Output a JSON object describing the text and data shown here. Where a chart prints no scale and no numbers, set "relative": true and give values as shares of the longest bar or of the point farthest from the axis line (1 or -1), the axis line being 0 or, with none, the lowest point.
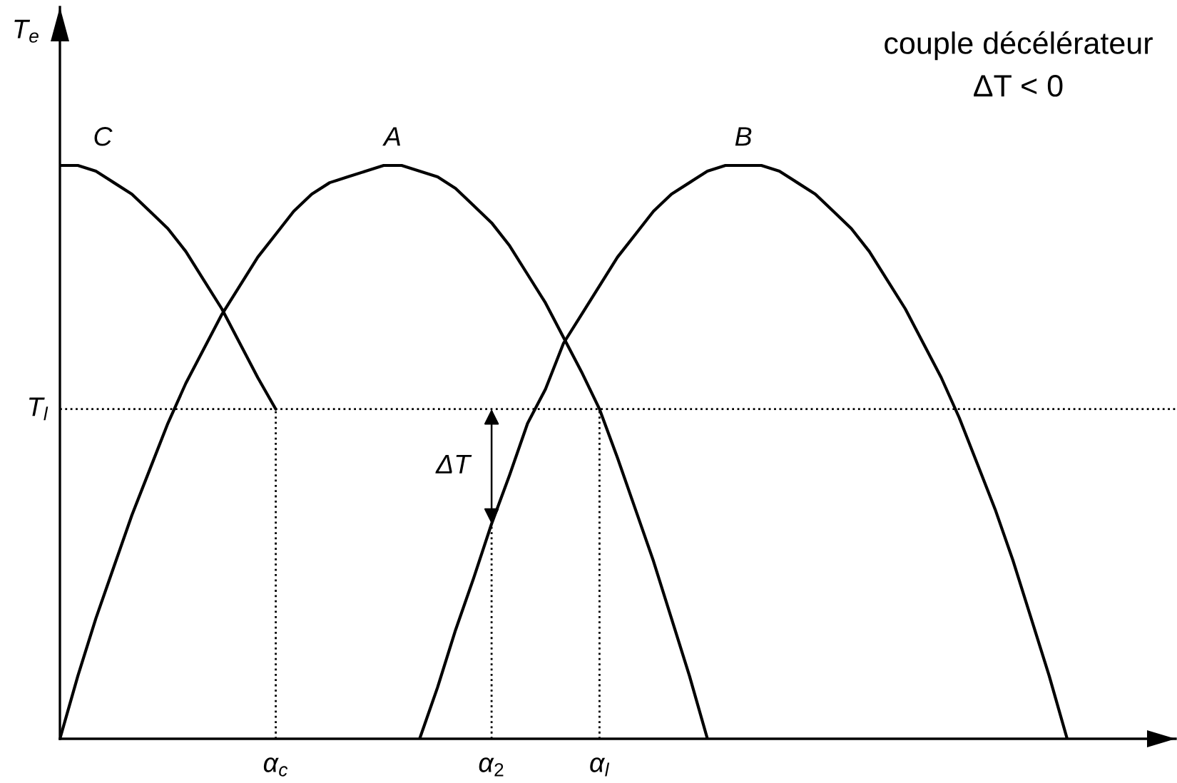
{
  "chart_data": {
    "type": "line",
    "relative": true,
    "ylabel": "T$_{e}$",
    "categories": [
      null,
      null,
      null,
      null,
      null,
      null,
      null,
      null,
      null,
      null,
      null,
      null,
      "α$_{c}$",
      null,
      null,
      null,
      null,
      null,
      null,
      null,
      null,
      null,
      null,
      null,
      "α$_{2}$",
      null,
      null,
      null,
      null,
      null,
      "α$_{l}$",
      null,
      null,
      null,
      null,
      null,
      null,
      null,
      null,
      null,
      null,
      null,
      null,
      null,
      null,
      null,
      null,
      null,
      null,
      null,
      null,
      null,
      null,
      null,
      null,
      null,
      null
    ],
    "series": [
      {
        "name": "C",
        "color": "#000000",
        "values": [
          1.0,
          1.0,
          0.99,
          0.97,
          0.95,
          0.92,
          0.89,
          0.85,
          0.8,
          0.75,
          0.69,
          0.63,
          0.575,
          null,
          null,
          null,
          null,
          null,
          null,
          null,
          null,
          null,
          null,
          null,
          null,
          null,
          null,
          null,
          null,
          null,
          null,
          null,
          null,
          null,
          null,
          null,
          null,
          null,
          null,
          null,
          null,
          null,
          null,
          null,
          null,
          null,
          null,
          null,
          null,
          null,
          null,
          null,
          null,
          null,
          null,
          null,
          null
        ]
      },
      {
        "name": "A",
        "color": "#000000",
        "values": [
          0,
          0.11,
          0.21,
          0.3,
          0.39,
          0.47,
          0.55,
          0.62,
          0.68,
          0.74,
          0.79,
          0.84,
          0.88,
          0.92,
          0.95,
          0.97,
          0.98,
          0.99,
          1.0,
          1.0,
          0.99,
          0.98,
          0.96,
          0.93,
          0.9,
          0.86,
          0.81,
          0.76,
          0.7,
          0.64,
          0.575,
          0.49,
          0.4,
          0.31,
          0.21,
          0.11,
          0,
          null,
          null,
          null,
          null,
          null,
          null,
          null,
          null,
          null,
          null,
          null,
          null,
          null,
          null,
          null,
          null,
          null,
          null,
          null,
          null
        ]
      },
      {
        "name": "B",
        "color": "#000000",
        "values": [
          null,
          null,
          null,
          null,
          null,
          null,
          null,
          null,
          null,
          null,
          null,
          null,
          null,
          null,
          null,
          null,
          null,
          null,
          null,
          null,
          0,
          0.09,
          0.19,
          0.28,
          0.375,
          0.46,
          0.55,
          0.61,
          0.69,
          0.74,
          0.79,
          0.84,
          0.88,
          0.92,
          0.95,
          0.97,
          0.99,
          1.0,
          1.0,
          1.0,
          0.99,
          0.97,
          0.95,
          0.92,
          0.89,
          0.85,
          0.8,
          0.75,
          0.69,
          0.63,
          0.56,
          0.48,
          0.4,
          0.31,
          0.21,
          0.11,
          0
        ]
      }
    ],
    "ref_lines": [
      {
        "axis": "y",
        "value": 0.575,
        "label": "T$_{l}$",
        "line_style": "dotted",
        "color": "#000000"
      },
      {
        "axis": "x",
        "value": "α$_{c}$",
        "line_style": "dotted",
        "color": "#000000"
      },
      {
        "axis": "x",
        "value": "α$_{2}$",
        "line_style": "dotted",
        "color": "#000000"
      },
      {
        "axis": "x",
        "value": "α$_{l}$",
        "line_style": "dotted",
        "color": "#000000"
      }
    ],
    "annotations": [
      "couple décélérateur",
      "ΔT < 0",
      {
        "text": "ΔT",
        "x": "α$_{2}$",
        "y": 0.375
      }
    ]
  }
}
